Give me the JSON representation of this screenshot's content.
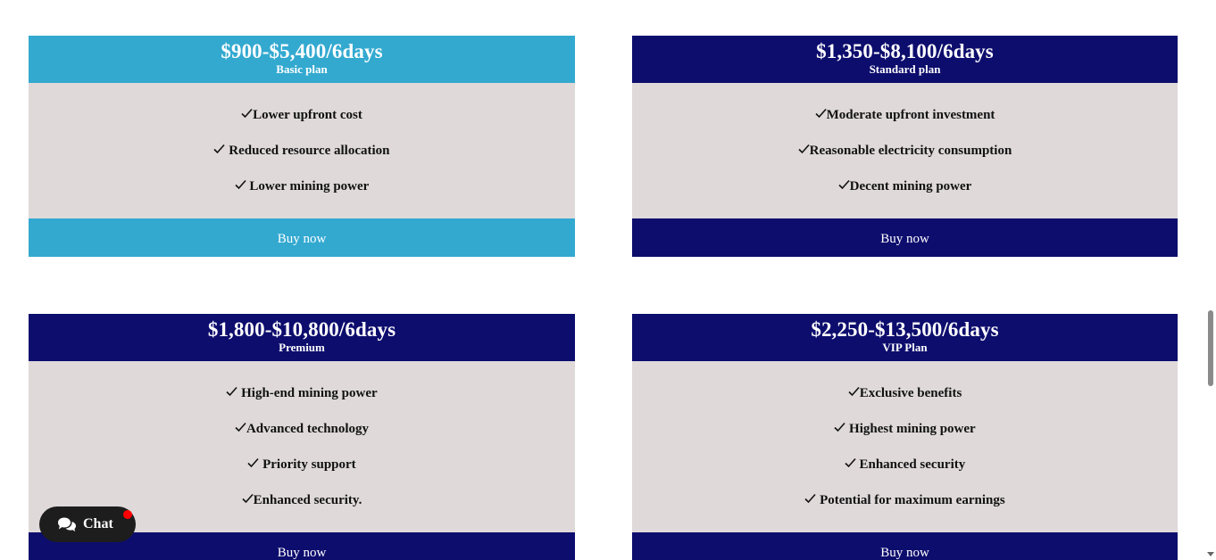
{
  "colors": {
    "basic_header": "#33a9d0",
    "navy_header": "#0d0d6e",
    "body_bg": "#dfd9da",
    "chat_bg": "#1d1d1d",
    "chat_badge": "#ff0000"
  },
  "plans": [
    {
      "price": "$900-$5,400/6days",
      "name": "Basic plan",
      "features": [
        "Lower upfront cost",
        " Reduced resource allocation",
        " Lower mining power"
      ],
      "button_label": "Buy now"
    },
    {
      "price": "$1,350-$8,100/6days",
      "name": "Standard plan",
      "features": [
        "Moderate upfront investment",
        "Reasonable electricity consumption",
        "Decent mining power"
      ],
      "button_label": "Buy now"
    },
    {
      "price": "$1,800-$10,800/6days",
      "name": "Premium",
      "features": [
        " High-end mining power",
        "Advanced technology",
        " Priority support",
        "Enhanced security."
      ],
      "button_label": "Buy now"
    },
    {
      "price": "$2,250-$13,500/6days",
      "name": "VIP Plan",
      "features": [
        "Exclusive benefits",
        " Highest mining power",
        " Enhanced security",
        " Potential for maximum earnings"
      ],
      "button_label": "Buy now"
    }
  ],
  "chat": {
    "label": "Chat",
    "icon": "chat-bubbles-icon"
  }
}
